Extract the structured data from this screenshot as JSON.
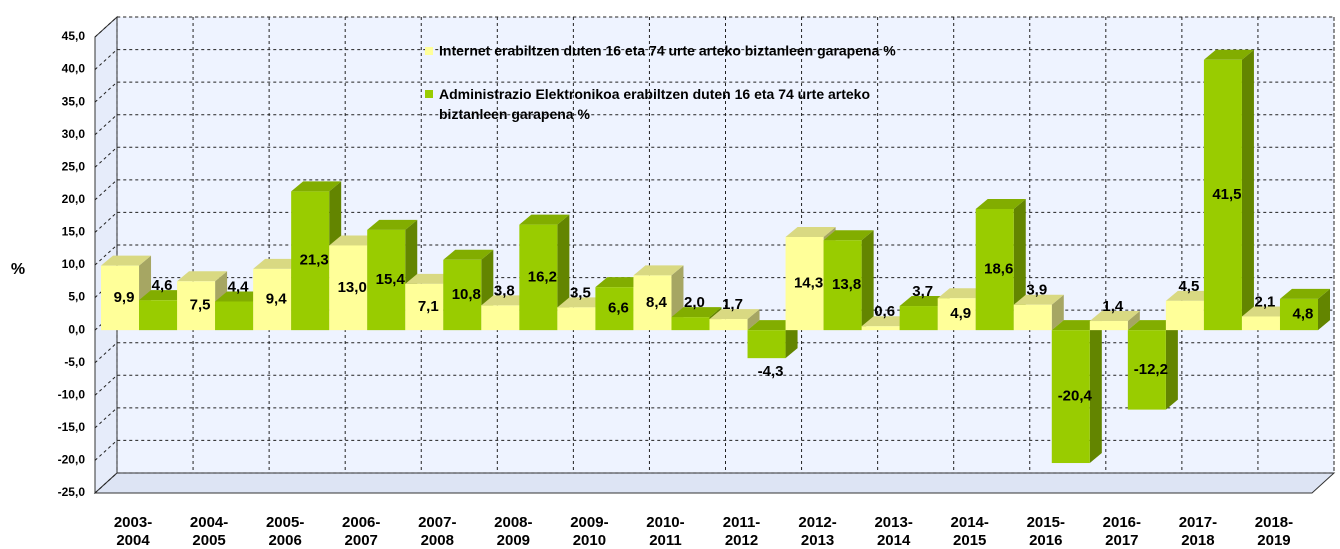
{
  "chart_data": {
    "type": "bar3d",
    "y_label": "%",
    "categories": [
      [
        "2003-",
        "2004"
      ],
      [
        "2004-",
        "2005"
      ],
      [
        "2005-",
        "2006"
      ],
      [
        "2006-",
        "2007"
      ],
      [
        "2007-",
        "2008"
      ],
      [
        "2008-",
        "2009"
      ],
      [
        "2009-",
        "2010"
      ],
      [
        "2010-",
        "2011"
      ],
      [
        "2011-",
        "2012"
      ],
      [
        "2012-",
        "2013"
      ],
      [
        "2013-",
        "2014"
      ],
      [
        "2014-",
        "2015"
      ],
      [
        "2015-",
        "2016"
      ],
      [
        "2016-",
        "2017"
      ],
      [
        "2017-",
        "2018"
      ],
      [
        "2018-",
        "2019"
      ]
    ],
    "series": [
      {
        "name": "Internet erabiltzen duten 16 eta 74 urte arteko biztanleen garapena %",
        "color": "#ffff99",
        "values": [
          9.9,
          7.5,
          9.4,
          13.0,
          7.1,
          3.8,
          3.5,
          8.4,
          1.7,
          14.3,
          0.6,
          4.9,
          3.9,
          1.4,
          4.5,
          2.1
        ],
        "value_labels": [
          "9,9",
          "7,5",
          "9,4",
          "13,0",
          "7,1",
          "3,8",
          "3,5",
          "8,4",
          "1,7",
          "14,3",
          "0,6",
          "4,9",
          "3,9",
          "1,4",
          "4,5",
          "2,1"
        ]
      },
      {
        "name": [
          "Administrazio Elektronikoa erabiltzen duten 16 eta 74 urte arteko",
          "biztanleen garapena %"
        ],
        "color": "#99cc00",
        "values": [
          4.6,
          4.4,
          21.3,
          15.4,
          10.8,
          16.2,
          6.6,
          2.0,
          -4.3,
          13.8,
          3.7,
          18.6,
          -20.4,
          -12.2,
          41.5,
          4.8
        ],
        "value_labels": [
          "4,6",
          "4,4",
          "21,3",
          "15,4",
          "10,8",
          "16,2",
          "6,6",
          "2,0",
          "-4,3",
          "13,8",
          "3,7",
          "18,6",
          "-20,4",
          "-12,2",
          "41,5",
          "4,8"
        ]
      }
    ],
    "ylim": [
      -25,
      45
    ],
    "yticks": [
      {
        "value": -25,
        "label": "-25,0"
      },
      {
        "value": -20,
        "label": "-20,0"
      },
      {
        "value": -15,
        "label": "-15,0"
      },
      {
        "value": -10,
        "label": "-10,0"
      },
      {
        "value": -5,
        "label": "-5,0"
      },
      {
        "value": 0,
        "label": "0,0"
      },
      {
        "value": 5,
        "label": "5,0"
      },
      {
        "value": 10,
        "label": "10,0"
      },
      {
        "value": 15,
        "label": "15,0"
      },
      {
        "value": 20,
        "label": "20,0"
      },
      {
        "value": 25,
        "label": "25,0"
      },
      {
        "value": 30,
        "label": "30,0"
      },
      {
        "value": 35,
        "label": "35,0"
      },
      {
        "value": 40,
        "label": "40,0"
      },
      {
        "value": 45,
        "label": "45,0"
      }
    ],
    "grid": true
  }
}
